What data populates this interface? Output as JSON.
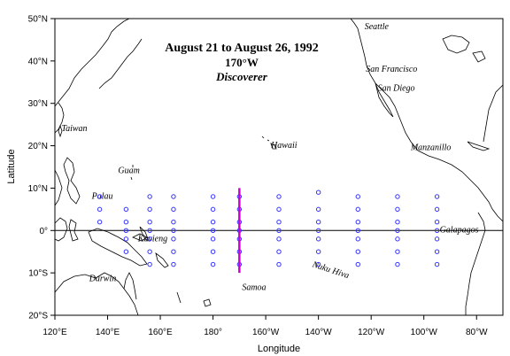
{
  "title": {
    "dates": "August 21 to August 26, 1992",
    "line": "170°W",
    "ship": "Discoverer"
  },
  "axes": {
    "xlabel": "Longitude",
    "ylabel": "Latitude",
    "x_range": [
      120,
      290
    ],
    "y_range": [
      -20,
      50
    ],
    "x_ticks": [
      {
        "value": 120,
        "label": "120°E"
      },
      {
        "value": 140,
        "label": "140°E"
      },
      {
        "value": 160,
        "label": "160°E"
      },
      {
        "value": 180,
        "label": "180°"
      },
      {
        "value": 200,
        "label": "160°W"
      },
      {
        "value": 220,
        "label": "140°W"
      },
      {
        "value": 240,
        "label": "120°W"
      },
      {
        "value": 260,
        "label": "100°W"
      },
      {
        "value": 280,
        "label": "80°W"
      }
    ],
    "y_ticks": [
      {
        "value": 50,
        "label": "50°N"
      },
      {
        "value": 40,
        "label": "40°N"
      },
      {
        "value": 30,
        "label": "30°N"
      },
      {
        "value": 20,
        "label": "20°N"
      },
      {
        "value": 10,
        "label": "10°N"
      },
      {
        "value": 0,
        "label": "0°"
      },
      {
        "value": -10,
        "label": "10°S"
      },
      {
        "value": -20,
        "label": "20°S"
      }
    ]
  },
  "places": [
    {
      "name": "Seattle",
      "lon": 237.5,
      "lat": 47.5
    },
    {
      "name": "San Francisco",
      "lon": 238,
      "lat": 37.5
    },
    {
      "name": "San Diego",
      "lon": 242.5,
      "lat": 33
    },
    {
      "name": "Manzanillo",
      "lon": 255,
      "lat": 19
    },
    {
      "name": "Hawaii",
      "lon": 202,
      "lat": 19.5
    },
    {
      "name": "Taiwan",
      "lon": 122.5,
      "lat": 23.5
    },
    {
      "name": "Guam",
      "lon": 144,
      "lat": 13.5
    },
    {
      "name": "Palau",
      "lon": 134,
      "lat": 7.5
    },
    {
      "name": "Kavieng",
      "lon": 151.5,
      "lat": -2.5
    },
    {
      "name": "Darwin",
      "lon": 133,
      "lat": -12
    },
    {
      "name": "Samoa",
      "lon": 191,
      "lat": -14
    },
    {
      "name": "Nuku Hiva",
      "lon": 217.5,
      "lat": -8.5
    },
    {
      "name": "Galapagos",
      "lon": 266,
      "lat": -0.5
    }
  ],
  "chart_data": {
    "type": "scatter",
    "title": "August 21 to August 26, 1992",
    "xlabel": "Longitude",
    "ylabel": "Latitude",
    "xlim": [
      120,
      290
    ],
    "ylim": [
      -20,
      50
    ],
    "highlight_line": {
      "lon": 190,
      "lat_from": -10,
      "lat_to": 10,
      "color": "#cc00cc"
    },
    "marker_color": "#3333ff",
    "moorings": [
      {
        "lon": 137,
        "lats": [
          8,
          5,
          2
        ]
      },
      {
        "lon": 147,
        "lats": [
          5,
          2,
          0,
          -2,
          -5
        ]
      },
      {
        "lon": 156,
        "lats": [
          8,
          5,
          2,
          0,
          -2,
          -5,
          -8
        ]
      },
      {
        "lon": 165,
        "lats": [
          8,
          5,
          2,
          0,
          -2,
          -5,
          -8
        ]
      },
      {
        "lon": 180,
        "lats": [
          8,
          5,
          2,
          0,
          -2,
          -5,
          -8
        ]
      },
      {
        "lon": 190,
        "lats": [
          8,
          5,
          2,
          0,
          -2,
          -5,
          -8
        ]
      },
      {
        "lon": 205,
        "lats": [
          8,
          5,
          2,
          0,
          -2,
          -5,
          -8
        ]
      },
      {
        "lon": 220,
        "lats": [
          9,
          5,
          2,
          0,
          -2,
          -5,
          -8
        ]
      },
      {
        "lon": 235,
        "lats": [
          8,
          5,
          2,
          0,
          -2,
          -5,
          -8
        ]
      },
      {
        "lon": 250,
        "lats": [
          8,
          5,
          2,
          0,
          -2,
          -5,
          -8
        ]
      },
      {
        "lon": 265,
        "lats": [
          8,
          5,
          2,
          0,
          -2,
          -5,
          -8
        ]
      }
    ]
  }
}
